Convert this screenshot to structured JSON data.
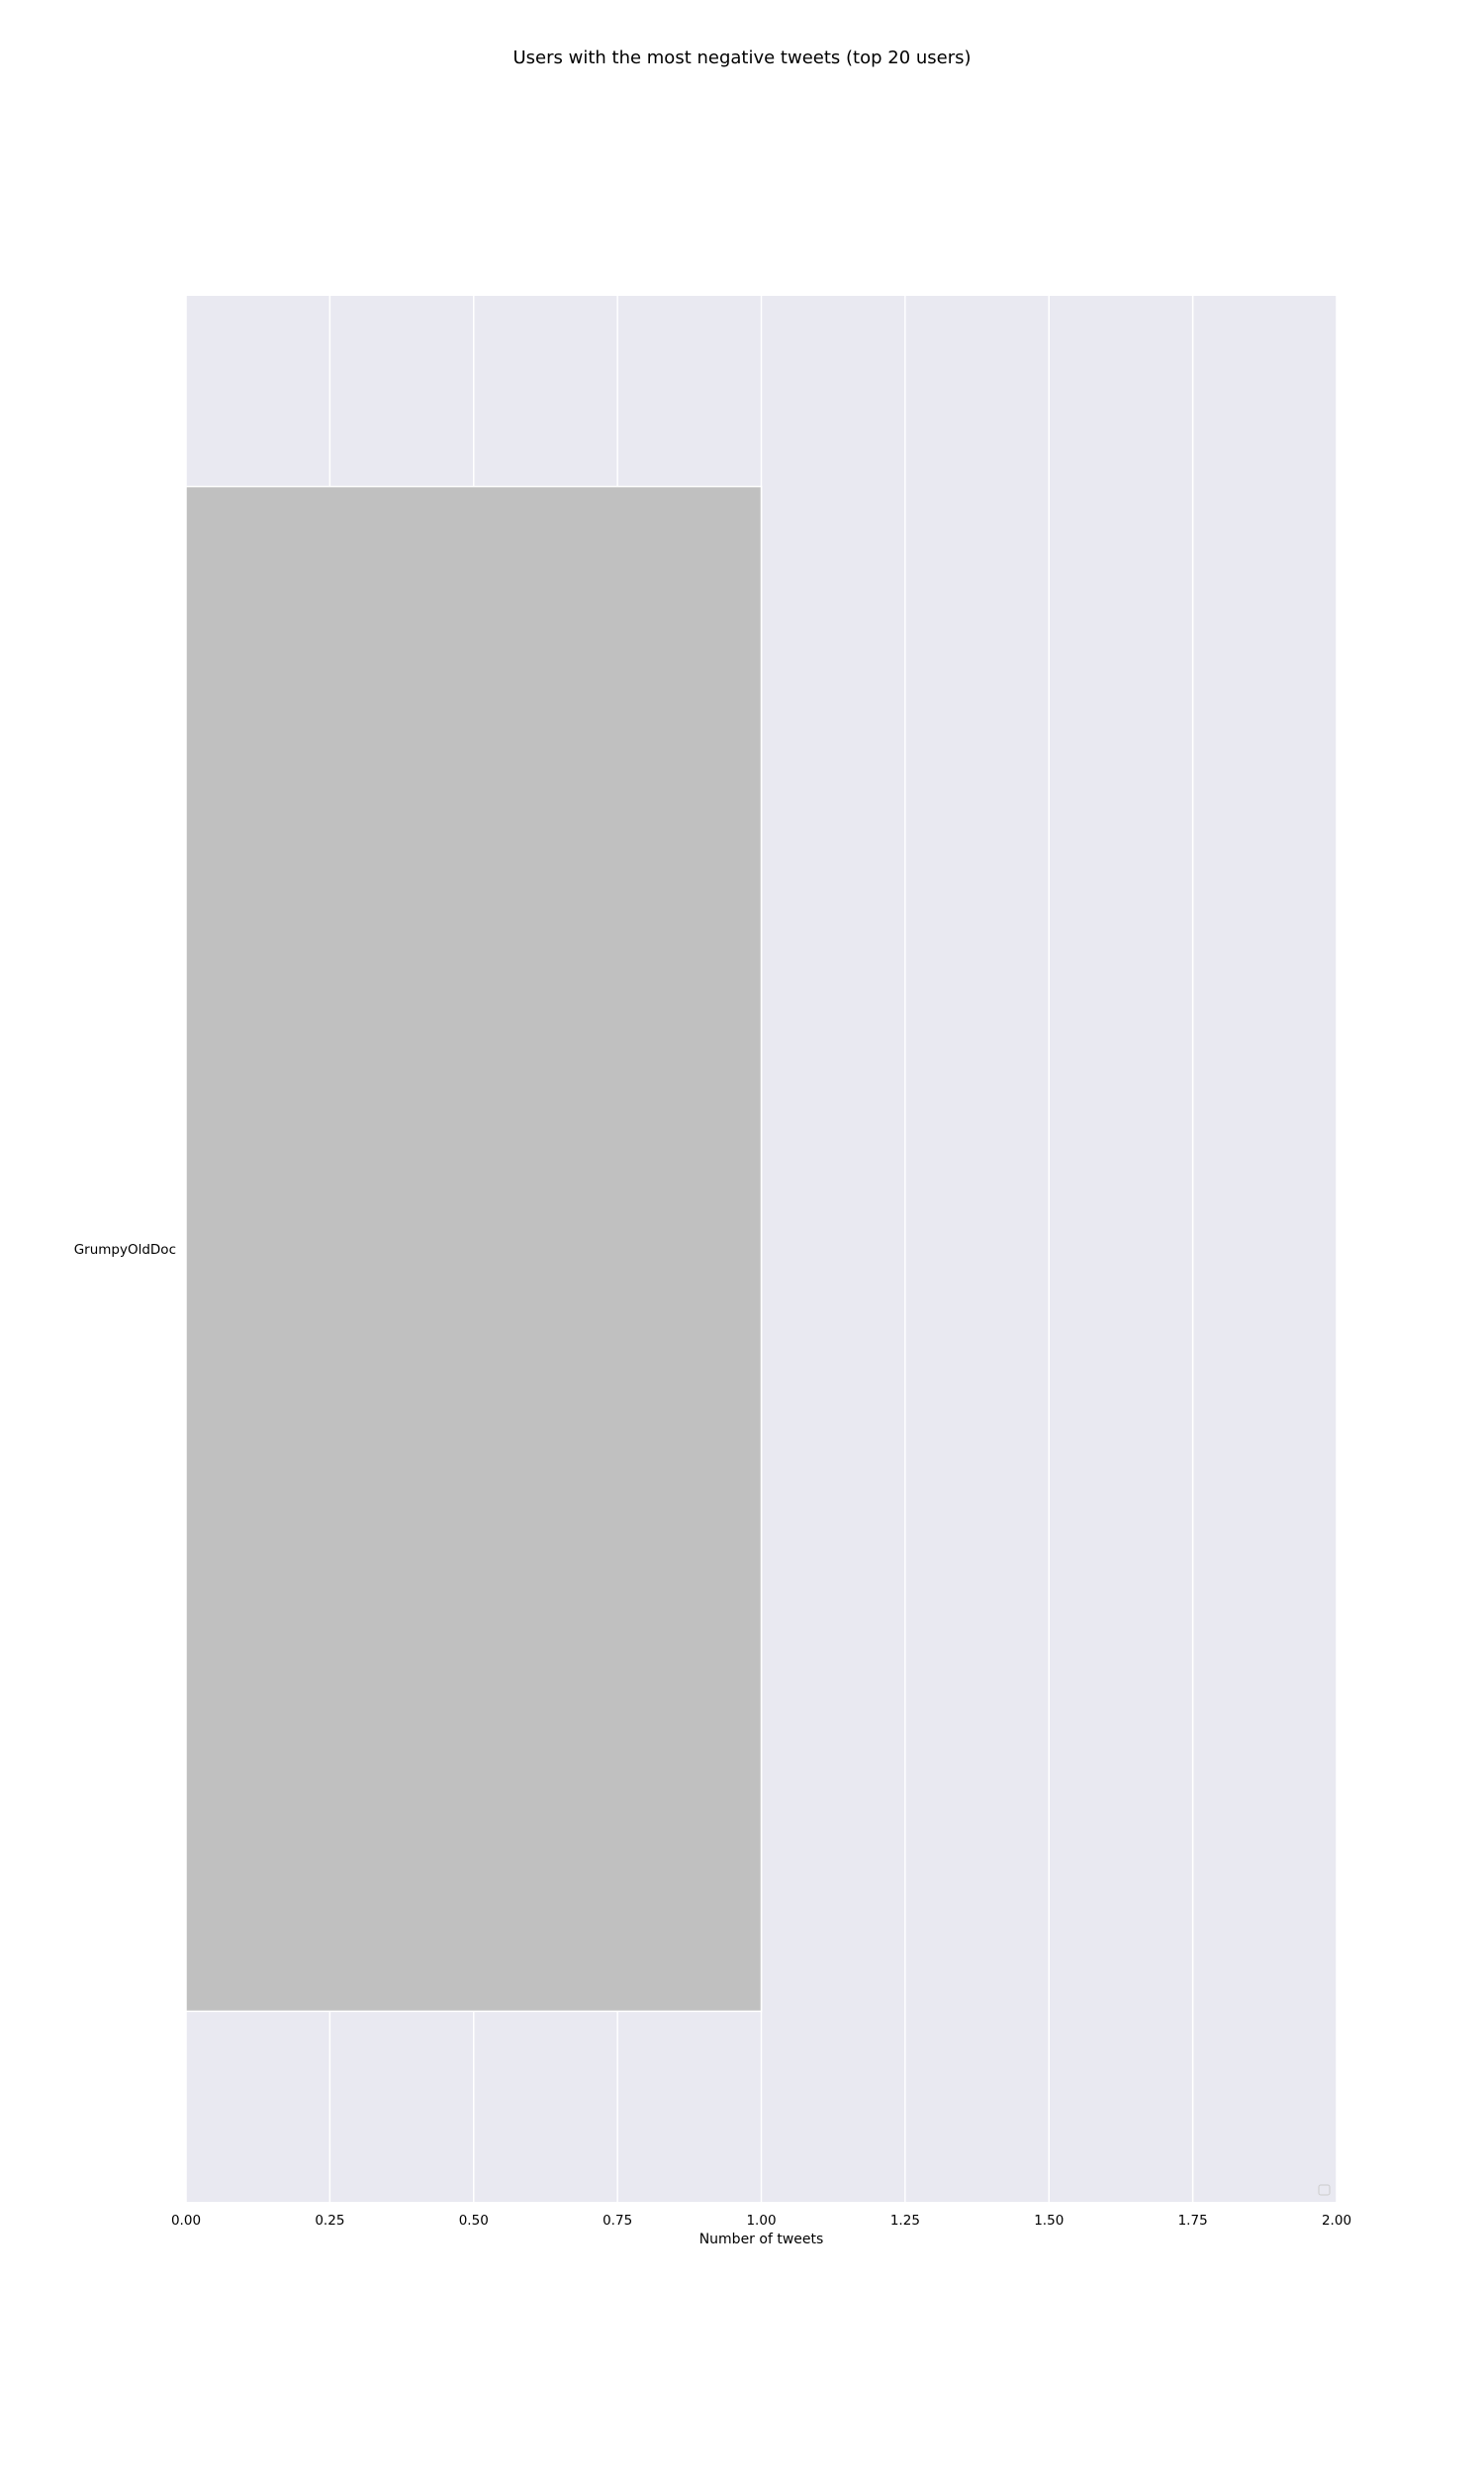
{
  "chart_data": {
    "type": "bar",
    "orientation": "horizontal",
    "title": "Users with the most negative tweets (top 20 users)",
    "xlabel": "Number of tweets",
    "ylabel": "",
    "categories": [
      "GrumpyOldDoc"
    ],
    "values": [
      1
    ],
    "xlim": [
      0,
      2
    ],
    "xticks": [
      "0.00",
      "0.25",
      "0.50",
      "0.75",
      "1.00",
      "1.25",
      "1.50",
      "1.75",
      "2.00"
    ],
    "grid": true,
    "legend": "bottom-right, empty",
    "colors": {
      "bar": "#c0c0c0",
      "plot_background": "#e9e9f1",
      "grid": "#ffffff"
    }
  }
}
